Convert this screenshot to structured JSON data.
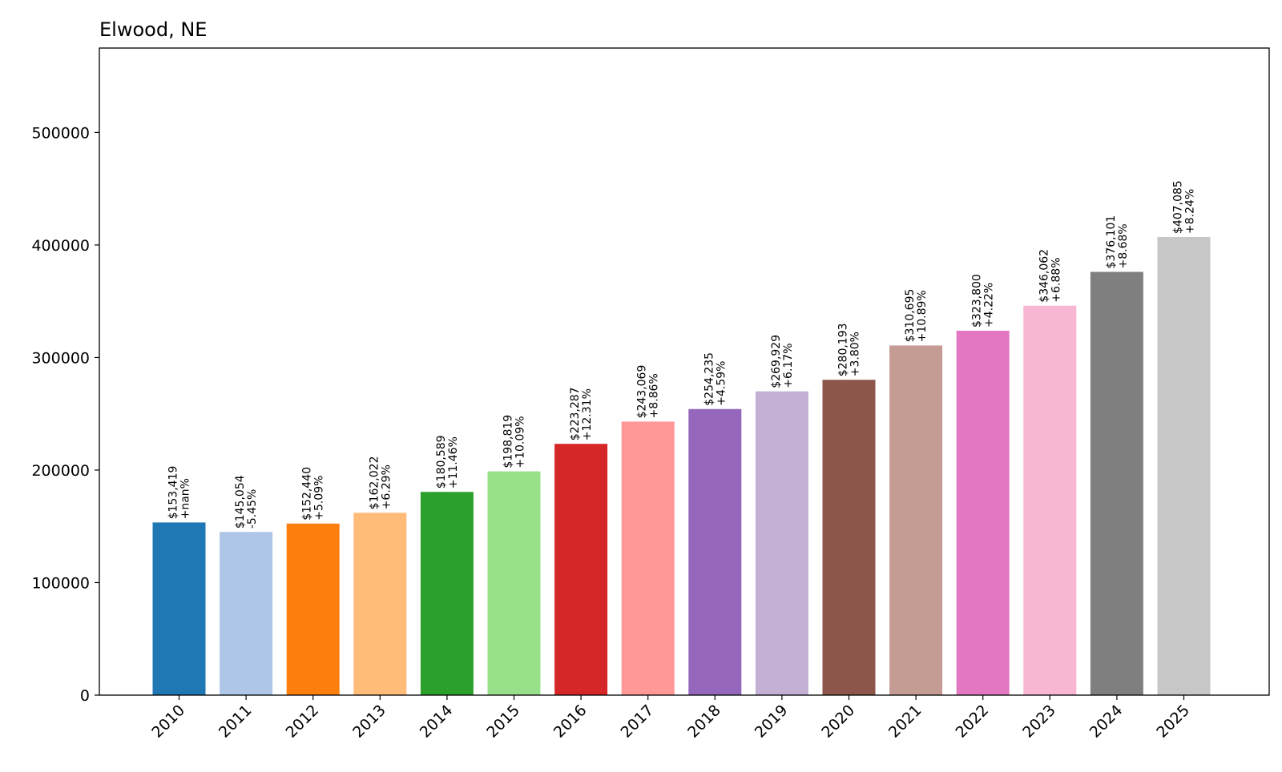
{
  "chart_data": {
    "type": "bar",
    "title": "Elwood, NE",
    "xlabel": "",
    "ylabel": "",
    "ylim": [
      0,
      575000
    ],
    "yticks": [
      0,
      100000,
      200000,
      300000,
      400000,
      500000
    ],
    "ytick_labels": [
      "0",
      "100000",
      "200000",
      "300000",
      "400000",
      "500000"
    ],
    "grid": false,
    "categories": [
      "2010",
      "2011",
      "2012",
      "2013",
      "2014",
      "2015",
      "2016",
      "2017",
      "2018",
      "2019",
      "2020",
      "2021",
      "2022",
      "2023",
      "2024",
      "2025"
    ],
    "values": [
      153419,
      145054,
      152440,
      162022,
      180589,
      198819,
      223287,
      243069,
      254235,
      269929,
      280193,
      310695,
      323800,
      346062,
      376101,
      407085
    ],
    "value_labels": [
      "$153,419",
      "$145,054",
      "$152,440",
      "$162,022",
      "$180,589",
      "$198,819",
      "$223,287",
      "$243,069",
      "$254,235",
      "$269,929",
      "$280,193",
      "$310,695",
      "$323,800",
      "$346,062",
      "$376,101",
      "$407,085"
    ],
    "change_labels": [
      "+nan%",
      "-5.45%",
      "+5.09%",
      "+6.29%",
      "+11.46%",
      "+10.09%",
      "+12.31%",
      "+8.86%",
      "+4.59%",
      "+6.17%",
      "+3.80%",
      "+10.89%",
      "+4.22%",
      "+6.88%",
      "+8.68%",
      "+8.24%"
    ],
    "colors": [
      "#1f77b4",
      "#aec7e8",
      "#ff7f0e",
      "#ffbb78",
      "#2ca02c",
      "#98df8a",
      "#d62728",
      "#ff9896",
      "#9467bd",
      "#c5b0d5",
      "#8c564b",
      "#c49c94",
      "#e377c2",
      "#f7b6d2",
      "#7f7f7f",
      "#c7c7c7"
    ]
  }
}
